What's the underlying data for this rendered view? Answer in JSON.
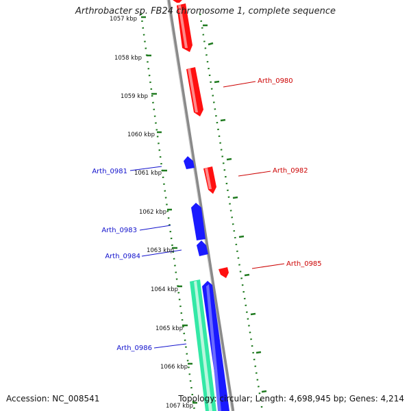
{
  "title": "Arthrobacter sp. FB24 chromosome 1, complete sequence",
  "accession_label": "Accession: NC_008541",
  "summary_label": "Topology: circular; Length: 4,698,945 bp; Genes: 4,214",
  "colors": {
    "backbone": "#8a8a8a",
    "forward_gene": "#ff1010",
    "reverse_gene": "#1a1aff",
    "rna_gene": "#33e8a6",
    "tick_dots": "#1f7a1f",
    "label_forward": "#cc0000",
    "label_reverse": "#1010cc"
  },
  "ticks": [
    {
      "label": "1057 kbp"
    },
    {
      "label": "1058 kbp"
    },
    {
      "label": "1059 kbp"
    },
    {
      "label": "1060 kbp"
    },
    {
      "label": "1061 kbp"
    },
    {
      "label": "1062 kbp"
    },
    {
      "label": "1063 kbp"
    },
    {
      "label": "1064 kbp"
    },
    {
      "label": "1065 kbp"
    },
    {
      "label": "1066 kbp"
    },
    {
      "label": "1067 kbp"
    }
  ],
  "gene_labels": [
    {
      "name": "Arth_0980",
      "strand": "forward"
    },
    {
      "name": "Arth_0981",
      "strand": "reverse"
    },
    {
      "name": "Arth_0982",
      "strand": "forward"
    },
    {
      "name": "Arth_0983",
      "strand": "reverse"
    },
    {
      "name": "Arth_0984",
      "strand": "reverse"
    },
    {
      "name": "Arth_0985",
      "strand": "forward"
    },
    {
      "name": "Arth_0986",
      "strand": "reverse"
    }
  ]
}
